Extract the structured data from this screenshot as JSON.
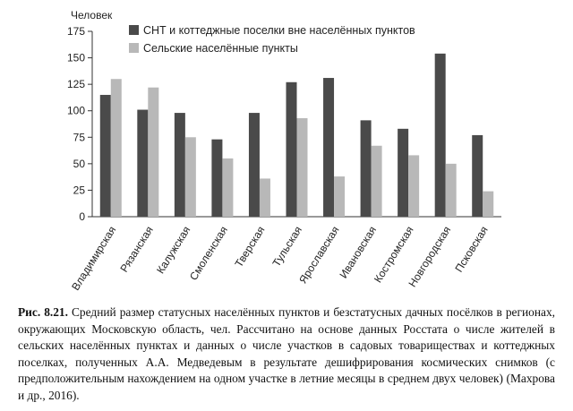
{
  "chart_data": {
    "type": "bar",
    "ylabel": "Человек",
    "ylim": [
      0,
      175
    ],
    "yticks": [
      0,
      25,
      50,
      75,
      100,
      125,
      150,
      175
    ],
    "legend_position": "top-left",
    "grid": false,
    "categories": [
      "Владимирская",
      "Рязанская",
      "Калужская",
      "Смоленская",
      "Тверская",
      "Тульская",
      "Ярославская",
      "Ивановская",
      "Костромская",
      "Новгородская",
      "Псковская"
    ],
    "series": [
      {
        "name": "СНТ и коттеджные поселки вне населённых пунктов",
        "color": "#4a4a4a",
        "values": [
          115,
          101,
          98,
          73,
          98,
          127,
          131,
          91,
          83,
          154,
          77
        ]
      },
      {
        "name": "Сельские населённые пункты",
        "color": "#b8b8b8",
        "values": [
          130,
          122,
          75,
          55,
          36,
          93,
          38,
          67,
          58,
          50,
          24
        ]
      }
    ]
  },
  "caption": {
    "label": "Рис. 8.21.",
    "text": "Средний размер статусных населённых пунктов и безстатусных дачных посёлков в регионах, окружающих Московскую область, чел. Рассчитано на основе данных Росстата о числе жителей в сельских населённых пунктах и данных о числе участков в садовых товариществах и коттеджных поселках, полученных А.А. Медведевым в результате дешифрирования космических снимков (с предположительным нахождением на одном участке в летние месяцы в среднем двух человек) (Махрова и др., 2016)."
  }
}
